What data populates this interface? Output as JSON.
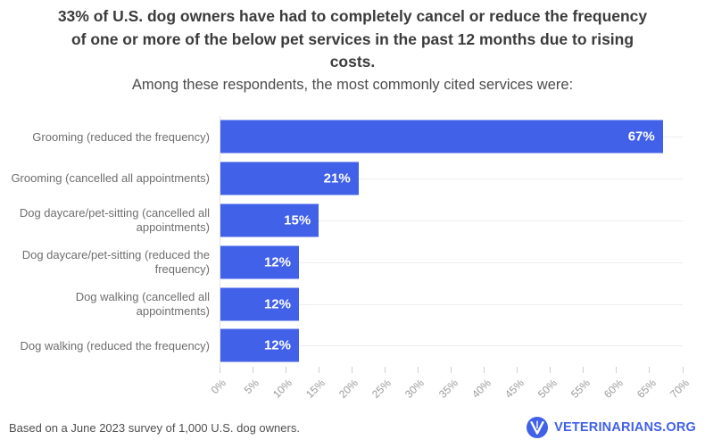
{
  "header": {
    "title": "33% of U.S. dog owners have had to completely cancel or reduce the frequency\nof one or more of the below pet services in the past 12 months due to rising\ncosts.",
    "subtitle": "Among these respondents, the most commonly cited services were:"
  },
  "chart_data": {
    "type": "bar",
    "orientation": "horizontal",
    "categories": [
      "Grooming (reduced the frequency)",
      "Grooming (cancelled all appointments)",
      "Dog daycare/pet-sitting (cancelled all\nappointments)",
      "Dog daycare/pet-sitting (reduced the\nfrequency)",
      "Dog walking (cancelled all\nappointments)",
      "Dog walking (reduced the frequency)"
    ],
    "values": [
      67,
      21,
      15,
      12,
      12,
      12
    ],
    "value_labels": [
      "67%",
      "21%",
      "15%",
      "12%",
      "12%",
      "12%"
    ],
    "xlim": [
      0,
      70
    ],
    "x_ticks": [
      "0%",
      "5%",
      "10%",
      "15%",
      "20%",
      "25%",
      "30%",
      "35%",
      "40%",
      "45%",
      "50%",
      "55%",
      "60%",
      "65%",
      "70%"
    ],
    "xlabel": "",
    "ylabel": "",
    "legend": "none",
    "grid": "horizontal row hairlines only",
    "value_label_position": "inside bar end, white bold"
  },
  "colors": {
    "accent": "#4161E8",
    "bar": "#4161E8",
    "title_text": "#3B3B3B",
    "category_text": "#6E6E6E",
    "tick_text": "#9A9A9A",
    "gridline": "#EDEDED",
    "background": "#FFFFFF"
  },
  "footer": {
    "source_note": "Based on a June 2023 survey of 1,000 U.S. dog owners.",
    "brand": {
      "name": "VETERINARIANS.ORG",
      "logo_letter": "V"
    }
  }
}
